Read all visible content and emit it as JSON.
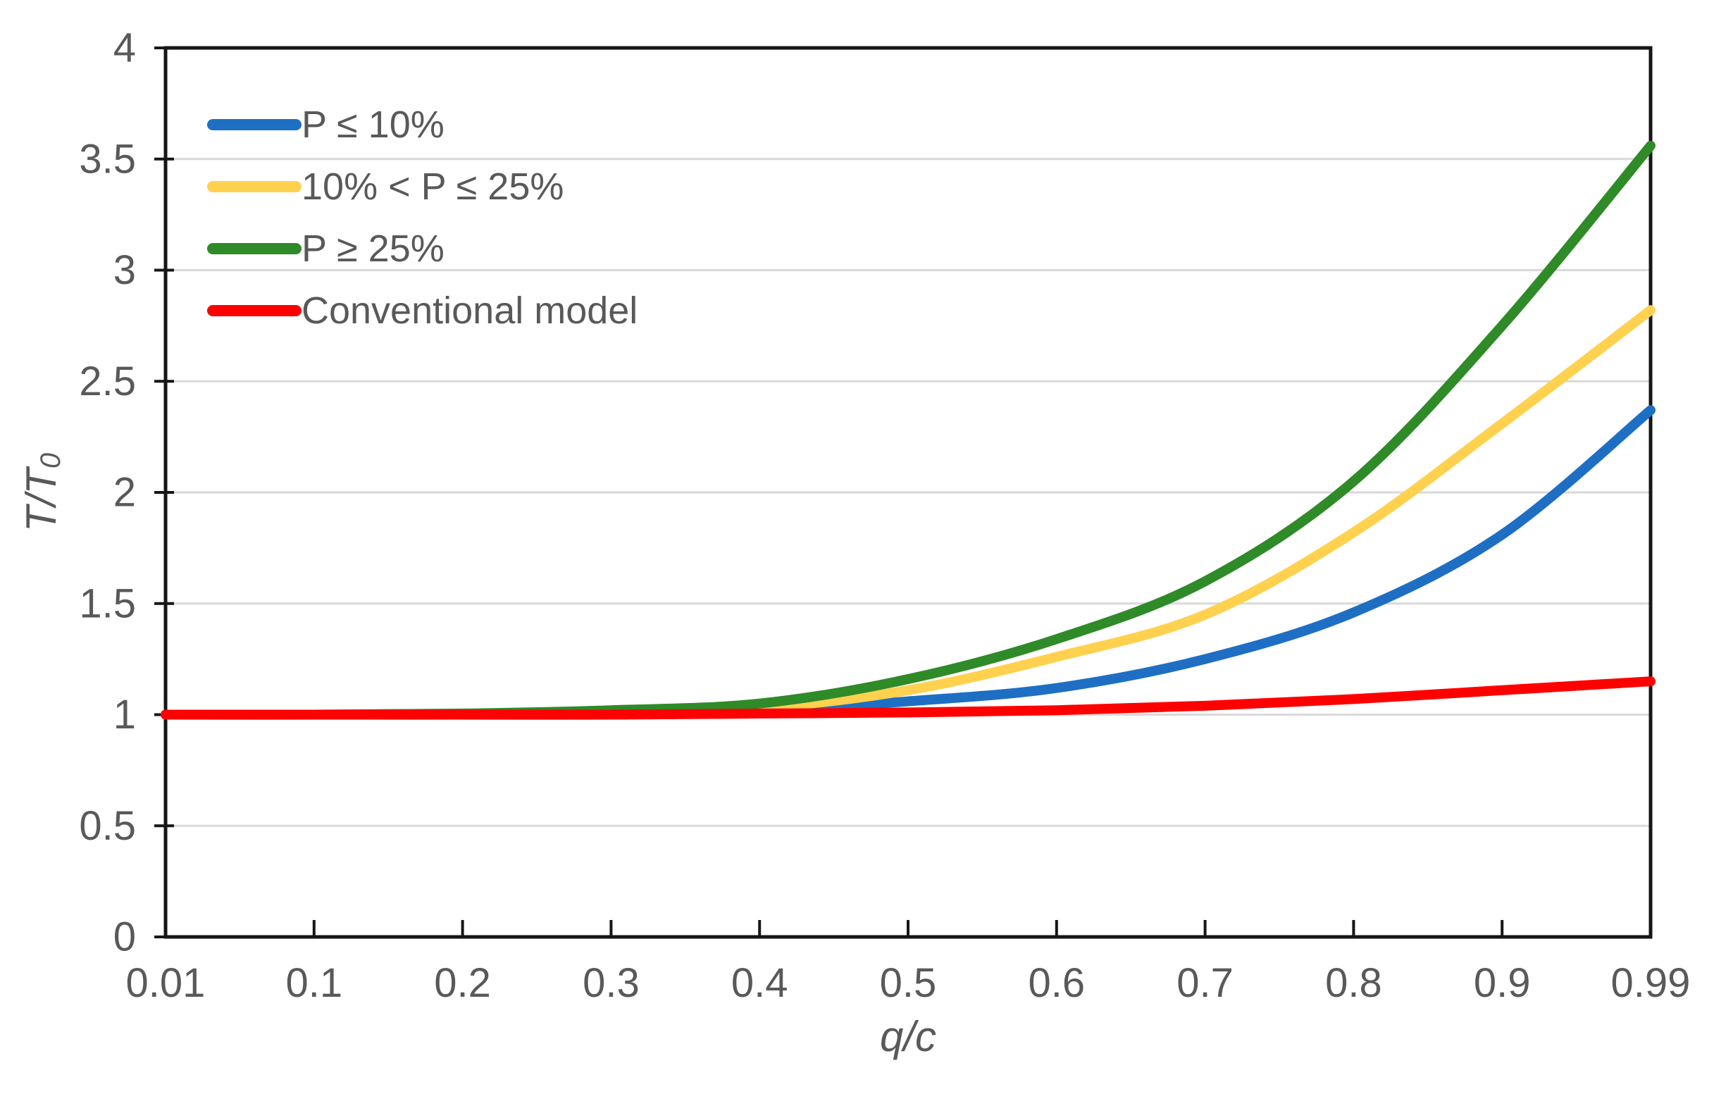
{
  "chart_data": {
    "type": "line",
    "title": "",
    "xlabel": "q/c",
    "ylabel": {
      "main": "T/T",
      "sub": "0"
    },
    "x_categories": [
      "0.01",
      "0.1",
      "0.2",
      "0.3",
      "0.4",
      "0.5",
      "0.6",
      "0.7",
      "0.8",
      "0.9",
      "0.99"
    ],
    "y_ticks": [
      "0",
      "0.5",
      "1",
      "1.5",
      "2",
      "2.5",
      "3",
      "3.5",
      "4"
    ],
    "ylim": [
      0,
      4
    ],
    "grid": "horizontal",
    "legend_position": "top-left-inside",
    "series": [
      {
        "name": "P ≤ 10%",
        "color": "#1E6FC3",
        "values": [
          1.0,
          1.0,
          1.0,
          1.005,
          1.02,
          1.06,
          1.12,
          1.25,
          1.46,
          1.81,
          2.37
        ]
      },
      {
        "name": "10% < P ≤ 25%",
        "color": "#FFD14E",
        "values": [
          1.0,
          1.0,
          1.005,
          1.01,
          1.03,
          1.11,
          1.26,
          1.45,
          1.82,
          2.31,
          2.82
        ]
      },
      {
        "name": "P ≥ 25%",
        "color": "#2F8A28",
        "values": [
          1.0,
          1.0,
          1.005,
          1.02,
          1.05,
          1.16,
          1.34,
          1.6,
          2.05,
          2.75,
          3.56
        ]
      },
      {
        "name": "Conventional model",
        "color": "#FF0000",
        "values": [
          1.0,
          1.0,
          1.0,
          1.0,
          1.005,
          1.01,
          1.02,
          1.04,
          1.07,
          1.11,
          1.15
        ]
      }
    ],
    "colors": {
      "grid": "#D9D9D9",
      "axis": "#161616",
      "text": "#595959",
      "background": "#FFFFFF"
    }
  }
}
